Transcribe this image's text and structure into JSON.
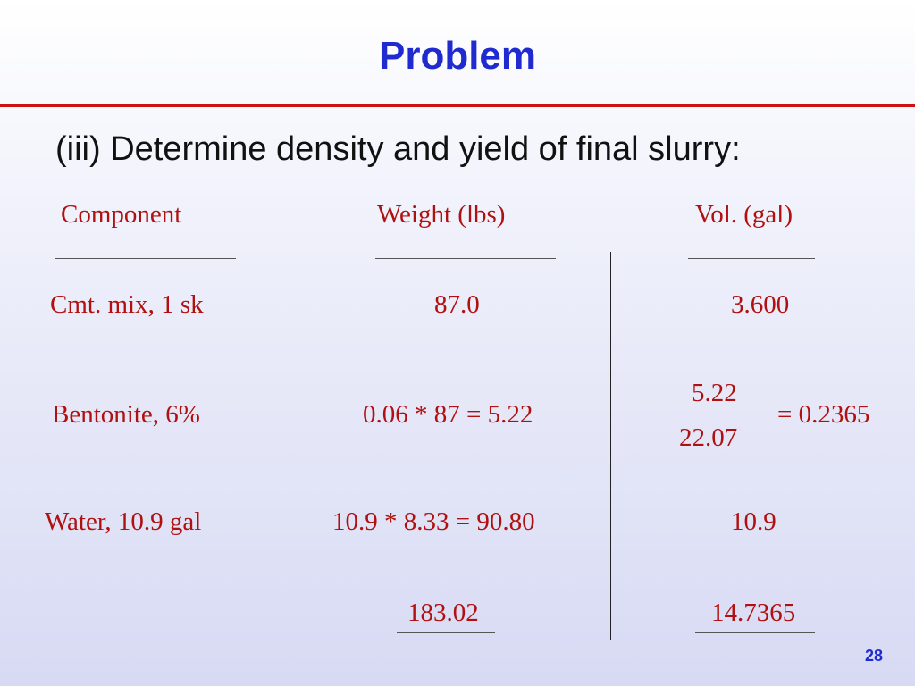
{
  "slide": {
    "title": "Problem",
    "subtitle": "(iii) Determine density and yield of final slurry:",
    "page_number": "28"
  },
  "table": {
    "headers": {
      "component": "Component",
      "weight": "Weight  (lbs)",
      "volume": "Vol. (gal)"
    },
    "rows": [
      {
        "component": "Cmt. mix,  1 sk",
        "weight": "87.0",
        "volume": "3.600"
      },
      {
        "component": "Bentonite,  6%",
        "weight": "0.06 * 87 = 5.22",
        "volume_numerator": "5.22",
        "volume_denominator": "22.07",
        "volume_result": "= 0.2365"
      },
      {
        "component": "Water, 10.9 gal",
        "weight": "10.9 * 8.33 = 90.80",
        "volume": "10.9"
      }
    ],
    "totals": {
      "weight": "183.02",
      "volume": "14.7365"
    }
  }
}
